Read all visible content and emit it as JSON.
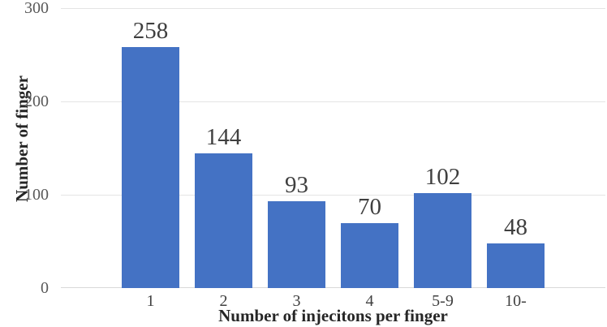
{
  "chart_data": {
    "type": "bar",
    "categories": [
      "1",
      "2",
      "3",
      "4",
      "5-9",
      "10-"
    ],
    "values": [
      258,
      144,
      93,
      70,
      102,
      48
    ],
    "title": "",
    "xlabel": "Number of injecitons per finger",
    "ylabel": "Number of finger",
    "ylim": [
      0,
      300
    ],
    "yticks": [
      0,
      100,
      200,
      300
    ],
    "grid": true,
    "legend": "none",
    "bar_color": "#4472C4",
    "gridline_color": "#E4E4E4",
    "axis_line_color": "#D9D9D9",
    "ytick_label_color": "#595959",
    "data_label_color": "#3F3F3F",
    "category_label_color": "#404040",
    "axis_title_color": "#262626"
  }
}
